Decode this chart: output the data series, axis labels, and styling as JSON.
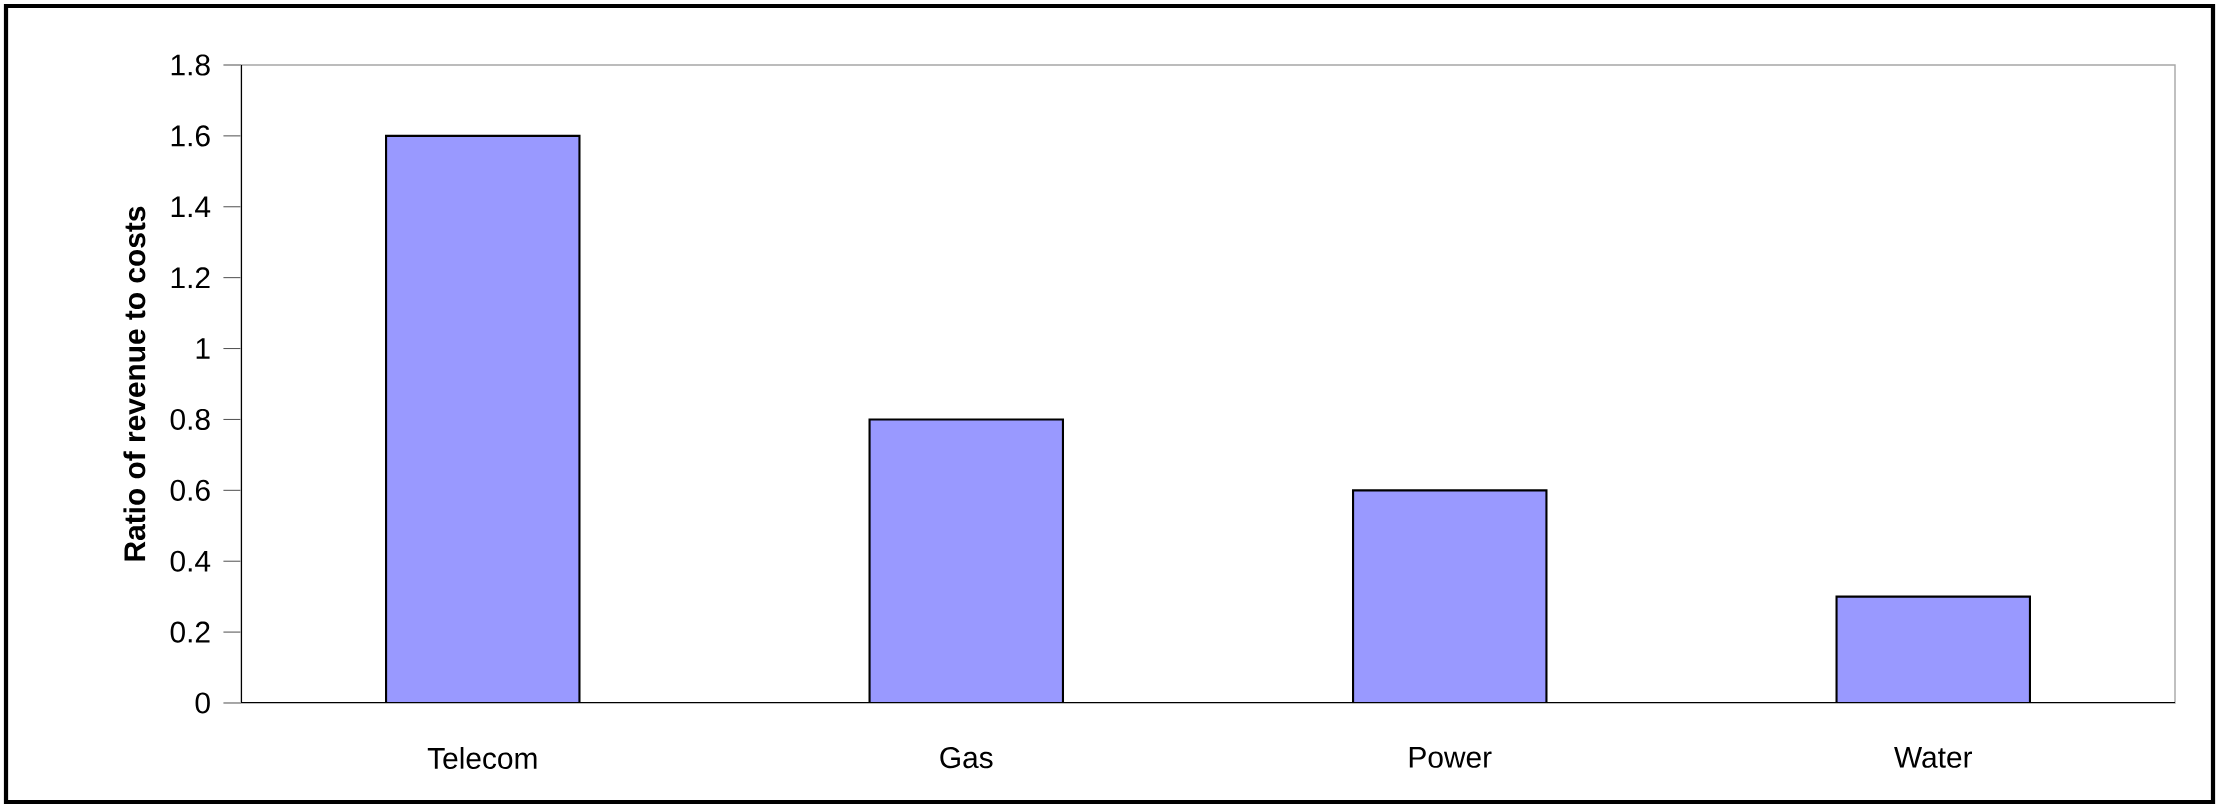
{
  "chart_data": {
    "type": "bar",
    "ylabel": "Ratio of revenue to costs",
    "categories": [
      "Telecom",
      "Gas",
      "Power",
      "Water"
    ],
    "values": [
      1.6,
      0.8,
      0.6,
      0.3
    ],
    "color": "#9999ff",
    "ylim": [
      0,
      1.8
    ],
    "yticks": [
      0,
      0.2,
      0.4,
      0.6,
      0.8,
      1,
      1.2,
      1.4,
      1.6,
      1.8
    ],
    "grid": false
  }
}
